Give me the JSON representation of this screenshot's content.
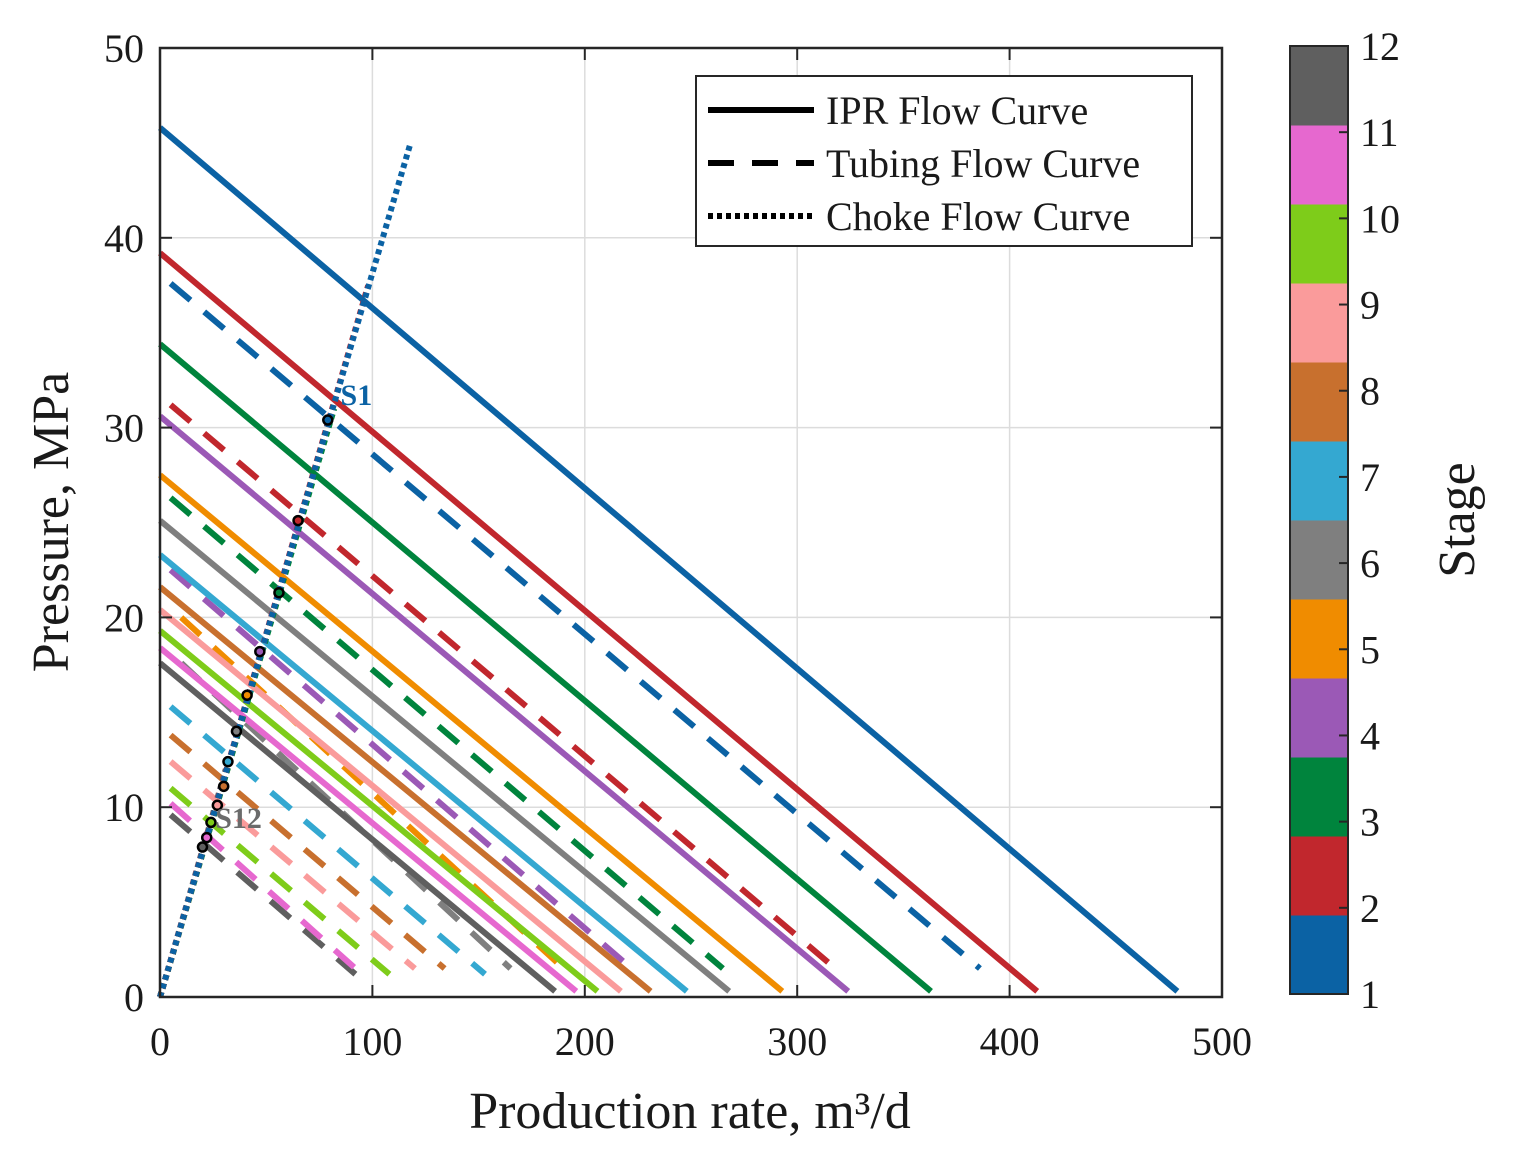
{
  "chart_data": {
    "type": "line",
    "title": "",
    "xlabel": "Production rate, m³/d",
    "ylabel": "Pressure, MPa",
    "xlim": [
      0,
      500
    ],
    "ylim": [
      0,
      50
    ],
    "grid": true,
    "x_ticks": [
      "0",
      "100",
      "200",
      "300",
      "400",
      "500"
    ],
    "y_ticks": [
      "0",
      "10",
      "20",
      "30",
      "40",
      "50"
    ],
    "legend": {
      "location": "top-right",
      "entries": [
        {
          "label": "IPR Flow Curve",
          "style": "solid"
        },
        {
          "label": "Tubing Flow Curve",
          "style": "dashed"
        },
        {
          "label": "Choke Flow Curve",
          "style": "dotted"
        }
      ]
    },
    "colorbar": {
      "label": "Stage",
      "ticks": [
        "1",
        "2",
        "3",
        "4",
        "5",
        "6",
        "7",
        "8",
        "9",
        "10",
        "11",
        "12"
      ]
    },
    "annotations": [
      {
        "text": "S1",
        "x": 85,
        "y": 31.2,
        "color": "#0b62a4"
      },
      {
        "text": "S12",
        "x": 26,
        "y": 8.9,
        "color": "#6b6b6b"
      }
    ],
    "series": [
      {
        "stage": 1,
        "color": "#0b62a4",
        "ipr": [
          [
            0,
            45.8
          ],
          [
            479,
            0.3
          ]
        ],
        "tubing": [
          [
            5,
            37.6
          ],
          [
            386,
            1.5
          ]
        ],
        "choke": [
          [
            0,
            0
          ],
          [
            118,
            45
          ]
        ],
        "operating_point": [
          79,
          30.4
        ]
      },
      {
        "stage": 2,
        "color": "#c1272d",
        "ipr": [
          [
            0,
            39.2
          ],
          [
            413,
            0.3
          ]
        ],
        "tubing": [
          [
            5,
            31.2
          ],
          [
            318,
            1.5
          ]
        ],
        "choke": [
          [
            0,
            0
          ],
          [
            98,
            37.5
          ]
        ],
        "operating_point": [
          65,
          25.1
        ]
      },
      {
        "stage": 3,
        "color": "#00843d",
        "ipr": [
          [
            0,
            34.4
          ],
          [
            363,
            0.3
          ]
        ],
        "tubing": [
          [
            5,
            26.3
          ],
          [
            265,
            1.5
          ]
        ],
        "choke": [
          [
            0,
            0
          ],
          [
            82,
            31
          ]
        ],
        "operating_point": [
          56,
          21.3
        ]
      },
      {
        "stage": 4,
        "color": "#9b59b6",
        "ipr": [
          [
            0,
            30.6
          ],
          [
            324,
            0.3
          ]
        ],
        "tubing": [
          [
            5,
            22.5
          ],
          [
            222,
            1.5
          ]
        ],
        "choke": [
          [
            0,
            0
          ],
          [
            68,
            26
          ]
        ],
        "operating_point": [
          47,
          18.2
        ]
      },
      {
        "stage": 5,
        "color": "#f08c00",
        "ipr": [
          [
            0,
            27.5
          ],
          [
            293,
            0.3
          ]
        ],
        "tubing": [
          [
            10,
            20
          ],
          [
            190,
            1.5
          ]
        ],
        "choke": [
          [
            0,
            0
          ],
          [
            58,
            22
          ]
        ],
        "operating_point": [
          41,
          15.9
        ]
      },
      {
        "stage": 6,
        "color": "#7f7f7f",
        "ipr": [
          [
            0,
            25.1
          ],
          [
            268,
            0.3
          ]
        ],
        "tubing": [
          [
            10,
            17.6
          ],
          [
            165,
            1.5
          ]
        ],
        "choke": [
          [
            0,
            0
          ],
          [
            50,
            19
          ]
        ],
        "operating_point": [
          36,
          14
        ]
      },
      {
        "stage": 7,
        "color": "#34a8d1",
        "ipr": [
          [
            0,
            23.3
          ],
          [
            248,
            0.3
          ]
        ],
        "tubing": [
          [
            5,
            15.3
          ],
          [
            153,
            1.2
          ]
        ],
        "choke": [
          [
            0,
            0
          ],
          [
            45,
            17
          ]
        ],
        "operating_point": [
          32,
          12.4
        ]
      },
      {
        "stage": 8,
        "color": "#c8702e",
        "ipr": [
          [
            0,
            21.6
          ],
          [
            231,
            0.3
          ]
        ],
        "tubing": [
          [
            5,
            13.8
          ],
          [
            134,
            1.5
          ]
        ],
        "choke": [
          [
            0,
            0
          ],
          [
            41,
            15.5
          ]
        ],
        "operating_point": [
          30,
          11.1
        ]
      },
      {
        "stage": 9,
        "color": "#fa9b9b",
        "ipr": [
          [
            0,
            20.4
          ],
          [
            217,
            0.3
          ]
        ],
        "tubing": [
          [
            5,
            12.4
          ],
          [
            120,
            1.5
          ]
        ],
        "choke": [
          [
            0,
            0
          ],
          [
            38,
            14.5
          ]
        ],
        "operating_point": [
          27,
          10.1
        ]
      },
      {
        "stage": 10,
        "color": "#7ecc1a",
        "ipr": [
          [
            0,
            19.3
          ],
          [
            206,
            0.3
          ]
        ],
        "tubing": [
          [
            5,
            11
          ],
          [
            108,
            1.2
          ]
        ],
        "choke": [
          [
            0,
            0
          ],
          [
            35,
            13.2
          ]
        ],
        "operating_point": [
          24,
          9.2
        ]
      },
      {
        "stage": 11,
        "color": "#e668cf",
        "ipr": [
          [
            0,
            18.4
          ],
          [
            196,
            0.3
          ]
        ],
        "tubing": [
          [
            5,
            10.2
          ],
          [
            95,
            1.2
          ]
        ],
        "choke": [
          [
            0,
            0
          ],
          [
            33,
            12.5
          ]
        ],
        "operating_point": [
          22,
          8.4
        ]
      },
      {
        "stage": 12,
        "color": "#5f5f5f",
        "ipr": [
          [
            0,
            17.6
          ],
          [
            186,
            0.3
          ]
        ],
        "tubing": [
          [
            5,
            9.6
          ],
          [
            92,
            1.2
          ]
        ],
        "choke": [
          [
            0,
            0
          ],
          [
            31,
            12
          ]
        ],
        "operating_point": [
          20,
          7.9
        ]
      }
    ]
  }
}
